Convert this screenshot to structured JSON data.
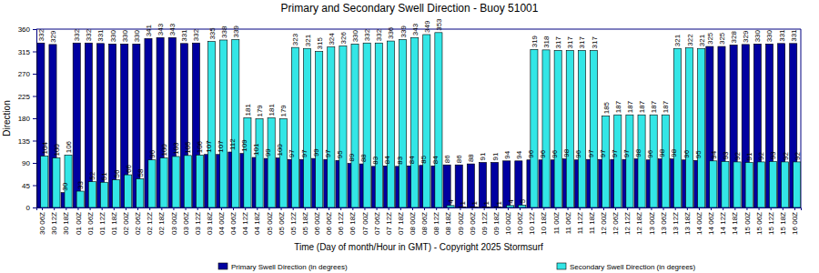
{
  "chart_data": {
    "type": "bar",
    "title": "Primary and Secondary Swell Direction - Buoy 51001",
    "x_label": "Time (Day of month/Hour in GMT) - Copyright 2025 Stormsurf",
    "y_label": "Direction",
    "categories": [
      "30 06Z",
      "30 12Z",
      "30 18Z",
      "01 00Z",
      "01 06Z",
      "01 12Z",
      "01 18Z",
      "02 00Z",
      "02 06Z",
      "02 12Z",
      "02 18Z",
      "03 00Z",
      "03 06Z",
      "03 12Z",
      "03 18Z",
      "04 00Z",
      "04 06Z",
      "04 12Z",
      "04 18Z",
      "05 00Z",
      "05 06Z",
      "05 12Z",
      "05 18Z",
      "06 00Z",
      "06 06Z",
      "06 12Z",
      "06 18Z",
      "07 00Z",
      "07 06Z",
      "07 12Z",
      "07 18Z",
      "08 00Z",
      "08 06Z",
      "08 12Z",
      "08 18Z",
      "09 00Z",
      "09 06Z",
      "09 12Z",
      "09 18Z",
      "10 00Z",
      "10 06Z",
      "10 12Z",
      "10 18Z",
      "11 00Z",
      "11 06Z",
      "11 12Z",
      "11 18Z",
      "12 00Z",
      "12 06Z",
      "12 12Z",
      "12 18Z",
      "13 00Z",
      "13 06Z",
      "13 12Z",
      "13 18Z",
      "14 00Z",
      "14 06Z",
      "14 12Z",
      "14 18Z",
      "15 00Z",
      "15 06Z",
      "15 12Z",
      "15 18Z",
      "16 00Z"
    ],
    "series": [
      {
        "name": "Primary Swell Direction (in degrees)",
        "color": "#0000a0",
        "values": [
          332,
          329,
          30,
          332,
          332,
          331,
          330,
          330,
          330,
          341,
          343,
          343,
          331,
          332,
          107,
          107,
          112,
          109,
          101,
          99,
          100,
          97,
          97,
          99,
          97,
          95,
          89,
          88,
          83,
          84,
          83,
          84,
          85,
          84,
          86,
          86,
          88,
          91,
          91,
          94,
          94,
          96,
          96,
          96,
          98,
          96,
          97,
          97,
          97,
          97,
          98,
          96,
          98,
          98,
          96,
          95,
          325,
          325,
          328,
          329,
          330,
          330,
          331,
          331
        ]
      },
      {
        "name": "Secondary Swell Direction (in degrees)",
        "color": "#33e6e6",
        "values": [
          104,
          100,
          106,
          33,
          52,
          51,
          56,
          66,
          58,
          96,
          100,
          103,
          105,
          106,
          335,
          338,
          339,
          181,
          179,
          181,
          179,
          323,
          321,
          315,
          324,
          326,
          330,
          332,
          332,
          336,
          339,
          343,
          349,
          353,
          4,
          1,
          1,
          1,
          1,
          4,
          5,
          319,
          318,
          317,
          317,
          317,
          317,
          185,
          187,
          187,
          187,
          187,
          187,
          321,
          322,
          321,
          94,
          93,
          92,
          91,
          92,
          93,
          92,
          92
        ]
      }
    ],
    "ylim": [
      0,
      360
    ],
    "yticks": [
      0,
      45,
      90,
      135,
      180,
      225,
      270,
      315,
      360
    ],
    "data_labels": true,
    "legend": "bottom"
  }
}
